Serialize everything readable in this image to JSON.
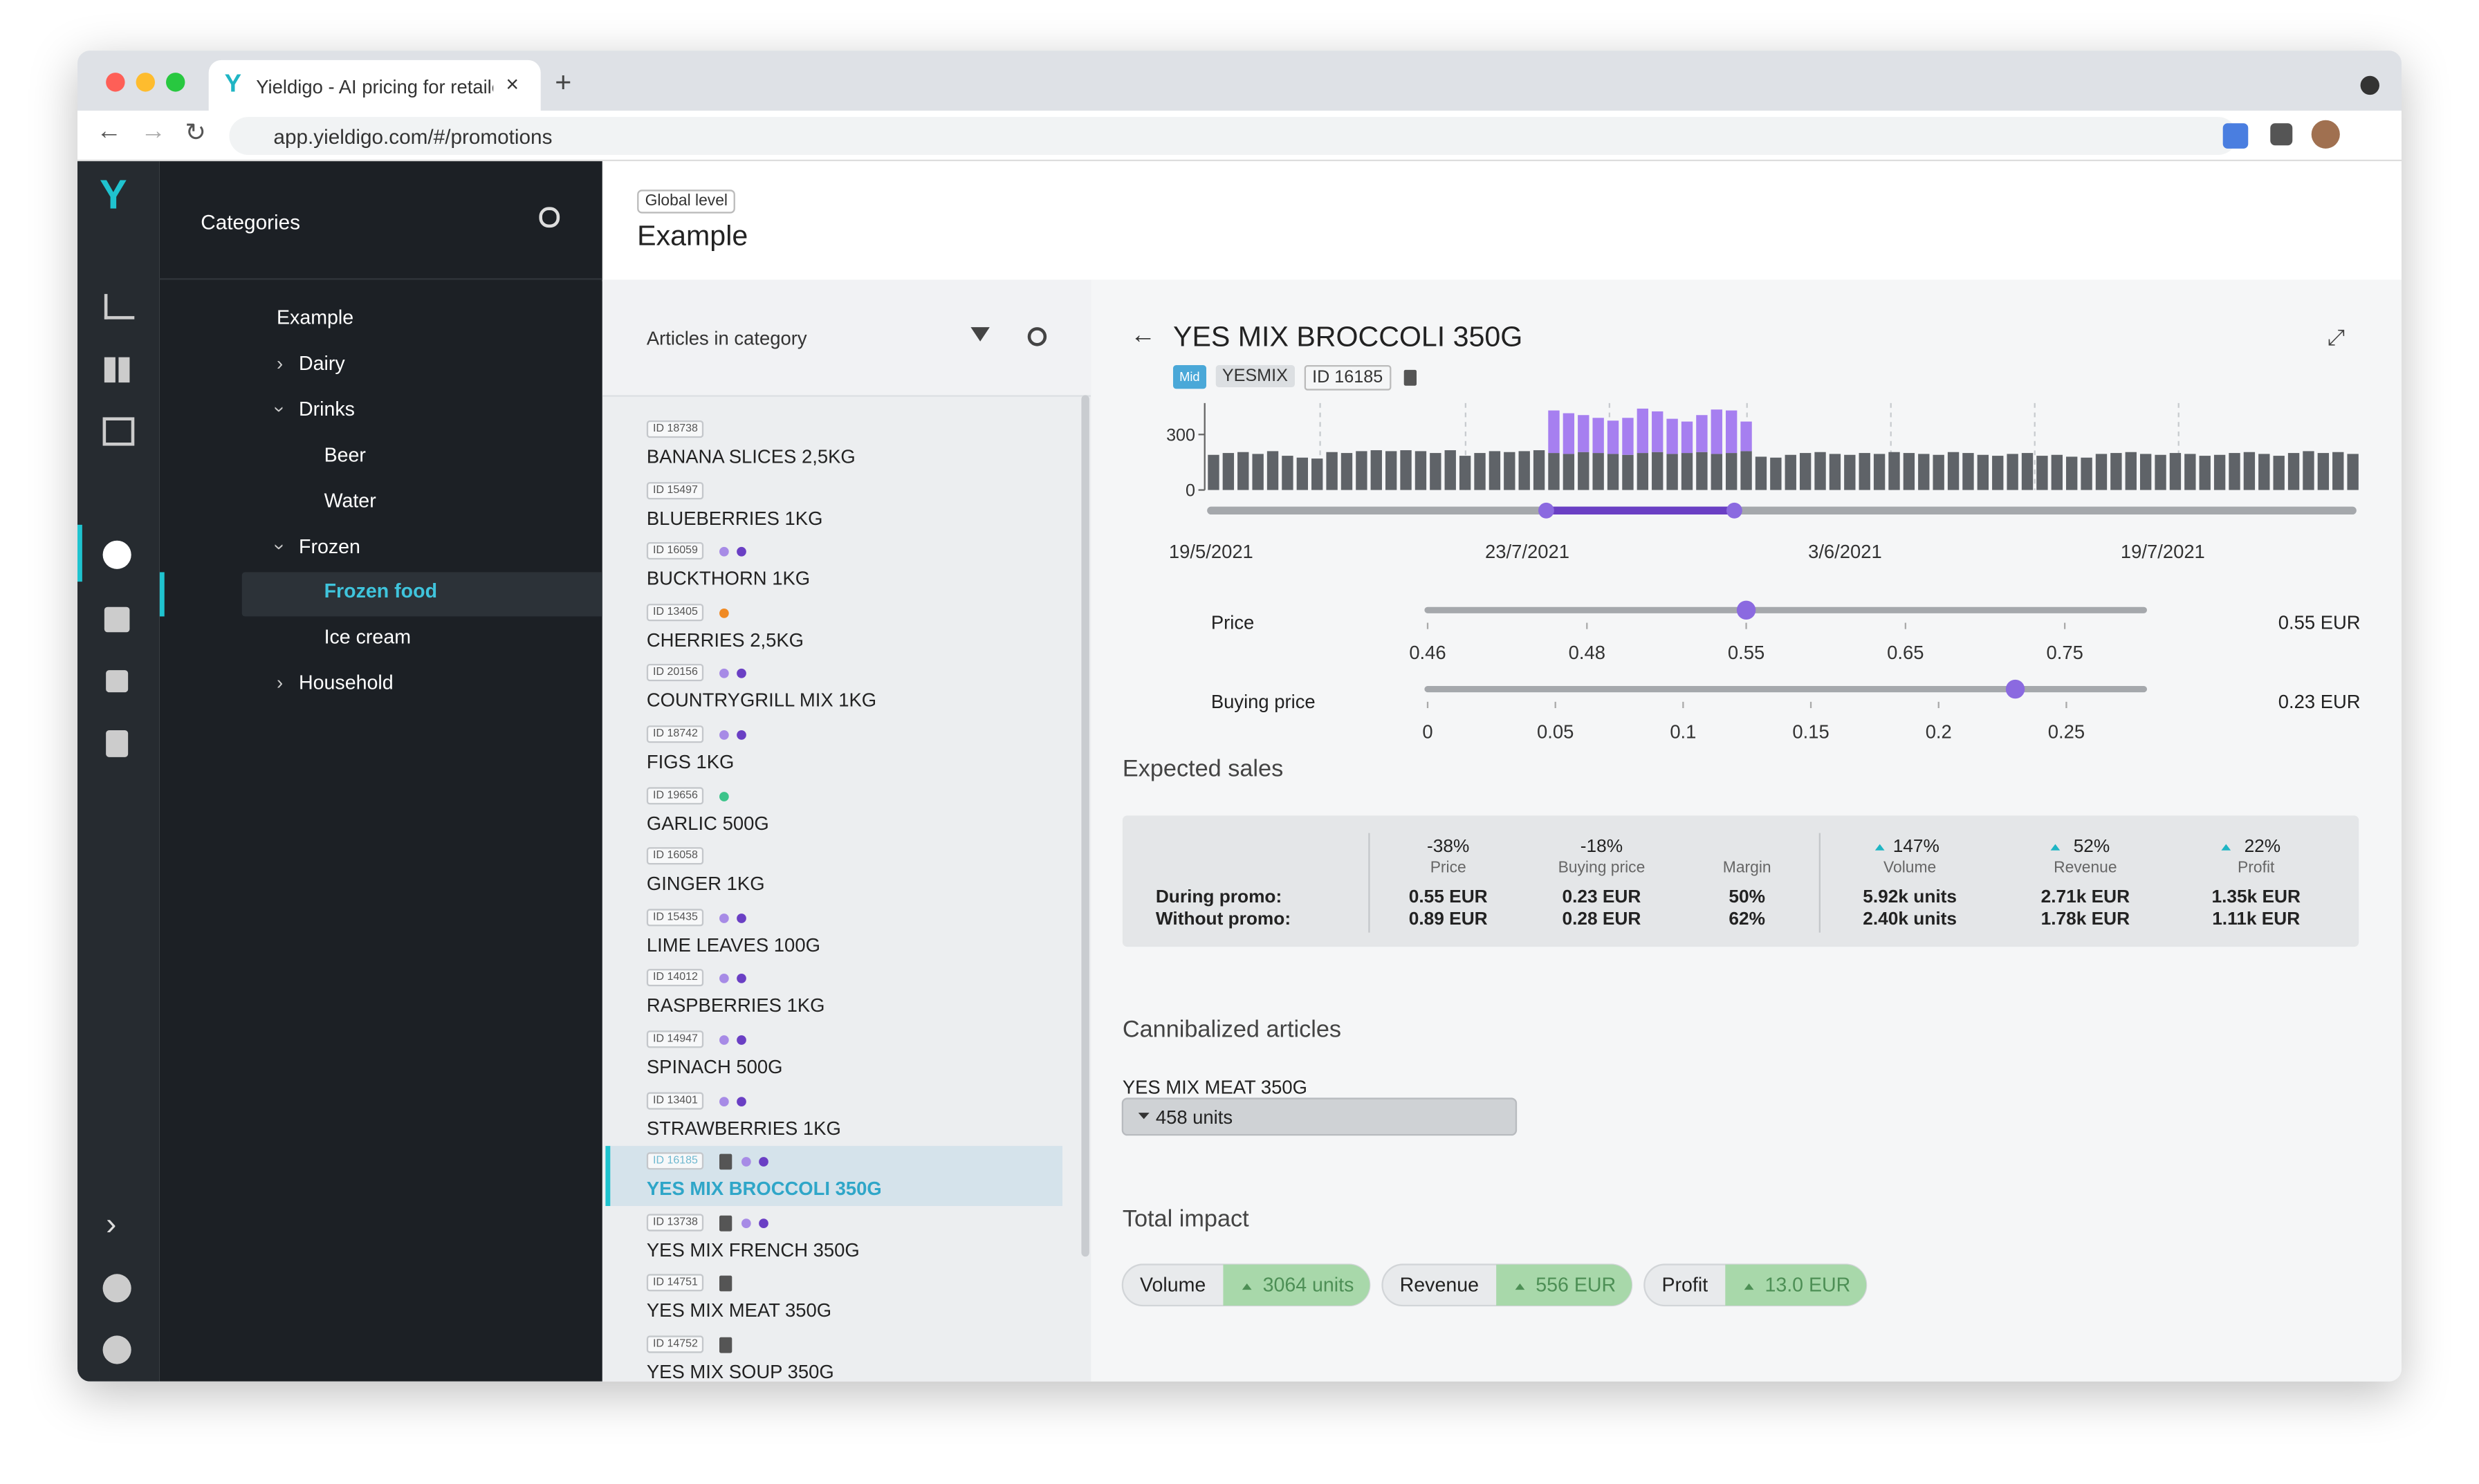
{
  "browser": {
    "tab_title": "Yieldigo - AI pricing for retailer",
    "url": "app.yieldigo.com/#/promotions"
  },
  "sidebar": {
    "title": "Categories",
    "tree": [
      {
        "label": "Example",
        "level": 0,
        "toggle": "none",
        "gear": false
      },
      {
        "label": "Dairy",
        "level": 1,
        "toggle": "collapsed",
        "gear": false
      },
      {
        "label": "Drinks",
        "level": 1,
        "toggle": "expanded",
        "gear": false
      },
      {
        "label": "Beer",
        "level": 2,
        "toggle": "none",
        "gear": true
      },
      {
        "label": "Water",
        "level": 2,
        "toggle": "none",
        "gear": true
      },
      {
        "label": "Frozen",
        "level": 1,
        "toggle": "expanded",
        "gear": false
      },
      {
        "label": "Frozen food",
        "level": 2,
        "toggle": "none",
        "gear": true,
        "selected": true
      },
      {
        "label": "Ice cream",
        "level": 2,
        "toggle": "none",
        "gear": true
      },
      {
        "label": "Household",
        "level": 1,
        "toggle": "collapsed",
        "gear": false
      }
    ]
  },
  "header": {
    "badge": "Global level",
    "title": "Example"
  },
  "articles": {
    "title": "Articles in category",
    "items": [
      {
        "id": "ID 18738",
        "name": "BANANA SLICES 2,5KG",
        "icon": false,
        "dots": []
      },
      {
        "id": "ID 15497",
        "name": "BLUEBERRIES 1KG",
        "icon": false,
        "dots": []
      },
      {
        "id": "ID 16059",
        "name": "BUCKTHORN 1KG",
        "icon": false,
        "dots": [
          "#a78be6",
          "#6a3fc4"
        ]
      },
      {
        "id": "ID 13405",
        "name": "CHERRIES 2,5KG",
        "icon": false,
        "dots": [
          "#f08a24"
        ]
      },
      {
        "id": "ID 20156",
        "name": "COUNTRYGRILL MIX 1KG",
        "icon": false,
        "dots": [
          "#a78be6",
          "#6a3fc4"
        ]
      },
      {
        "id": "ID 18742",
        "name": "FIGS 1KG",
        "icon": false,
        "dots": [
          "#a78be6",
          "#6a3fc4"
        ]
      },
      {
        "id": "ID 19656",
        "name": "GARLIC 500G",
        "icon": false,
        "dots": [
          "#3cc48a"
        ]
      },
      {
        "id": "ID 16058",
        "name": "GINGER 1KG",
        "icon": false,
        "dots": []
      },
      {
        "id": "ID 15435",
        "name": "LIME LEAVES 100G",
        "icon": false,
        "dots": [
          "#a78be6",
          "#6a3fc4"
        ]
      },
      {
        "id": "ID 14012",
        "name": "RASPBERRIES 1KG",
        "icon": false,
        "dots": [
          "#a78be6",
          "#6a3fc4"
        ]
      },
      {
        "id": "ID 14947",
        "name": "SPINACH 500G",
        "icon": false,
        "dots": [
          "#a78be6",
          "#6a3fc4"
        ]
      },
      {
        "id": "ID 13401",
        "name": "STRAWBERRIES 1KG",
        "icon": false,
        "dots": [
          "#a78be6",
          "#6a3fc4"
        ]
      },
      {
        "id": "ID 16185",
        "name": "YES MIX BROCCOLI 350G",
        "icon": true,
        "dots": [
          "#a78be6",
          "#6a3fc4"
        ],
        "selected": true
      },
      {
        "id": "ID 13738",
        "name": "YES MIX FRENCH 350G",
        "icon": true,
        "dots": [
          "#a78be6",
          "#6a3fc4"
        ]
      },
      {
        "id": "ID 14751",
        "name": "YES MIX MEAT 350G",
        "icon": true,
        "dots": []
      },
      {
        "id": "ID 14752",
        "name": "YES MIX SOUP 350G",
        "icon": true,
        "dots": []
      }
    ]
  },
  "detail": {
    "title": "YES MIX BROCCOLI 350G",
    "tags": [
      "Mid",
      "YESMIX",
      "ID 16185"
    ],
    "chart_data": {
      "type": "bar",
      "stacked": true,
      "ylim": [
        0,
        470
      ],
      "yticks": [
        0,
        300
      ],
      "x_labels": [
        "19/5/2021",
        "23/7/2021",
        "3/6/2021",
        "19/7/2021"
      ],
      "series": [
        {
          "color": "#5f6368",
          "values": [
            190,
            200,
            205,
            195,
            210,
            185,
            175,
            170,
            205,
            200,
            210,
            215,
            210,
            215,
            210,
            200,
            215,
            185,
            200,
            210,
            205,
            210,
            215,
            200,
            195,
            205,
            200,
            195,
            190,
            200,
            205,
            195,
            200,
            205,
            195,
            200,
            210,
            180,
            175,
            190,
            200,
            205,
            195,
            190,
            200,
            195,
            205,
            200,
            195,
            190,
            205,
            200,
            190,
            185,
            195,
            200,
            185,
            190,
            180,
            175,
            195,
            200,
            205,
            195,
            190,
            200,
            195,
            185,
            190,
            200,
            205,
            195,
            185,
            200,
            210,
            200,
            205,
            195
          ]
        },
        {
          "color": "#a67ff0",
          "values": [
            null,
            null,
            null,
            null,
            null,
            null,
            null,
            null,
            null,
            null,
            null,
            null,
            null,
            null,
            null,
            null,
            null,
            null,
            null,
            null,
            null,
            null,
            null,
            230,
            220,
            200,
            190,
            180,
            200,
            240,
            220,
            190,
            170,
            200,
            240,
            230,
            160,
            null,
            null,
            null,
            null,
            null,
            null,
            null,
            null,
            null,
            null,
            null,
            null,
            null,
            null,
            null,
            null,
            null,
            null,
            null,
            null,
            null,
            null,
            null,
            null,
            null,
            null,
            null,
            null,
            null,
            null,
            null,
            null,
            null,
            null,
            null,
            null,
            null,
            null,
            null,
            null,
            null
          ]
        }
      ]
    },
    "sliders": [
      {
        "label": "Price",
        "ticks": [
          0.46,
          0.48,
          0.55,
          0.65,
          0.75
        ],
        "value": {
          "value": 0.55,
          "label": "0.55 EUR"
        }
      },
      {
        "label": "Buying price",
        "ticks": [
          0,
          0.05,
          0.1,
          0.15,
          0.2,
          0.25
        ],
        "value": {
          "value": 0.23,
          "label": "0.23 EUR"
        }
      }
    ]
  },
  "expected_sales": {
    "title": "Expected sales",
    "row_labels": [
      "During promo:",
      "Without promo:"
    ],
    "columns": [
      {
        "change": "-38%",
        "arrow": false,
        "label": "Price",
        "promo": "0.55 EUR",
        "without": "0.89 EUR"
      },
      {
        "change": "-18%",
        "arrow": false,
        "label": "Buying price",
        "promo": "0.23 EUR",
        "without": "0.28 EUR"
      },
      {
        "change": null,
        "arrow": false,
        "label": "Margin",
        "promo": "50%",
        "without": "62%"
      },
      {
        "change": "147%",
        "arrow": true,
        "label": "Volume",
        "promo": "5.92k units",
        "without": "2.40k units"
      },
      {
        "change": "52%",
        "arrow": true,
        "label": "Revenue",
        "promo": "2.71k EUR",
        "without": "1.78k EUR"
      },
      {
        "change": "22%",
        "arrow": true,
        "label": "Profit",
        "promo": "1.35k EUR",
        "without": "1.11k EUR"
      }
    ]
  },
  "cannibalized": {
    "title": "Cannibalized articles",
    "items": [
      {
        "name": "YES MIX MEAT 350G",
        "value": "458 units"
      }
    ]
  },
  "total_impact": {
    "title": "Total impact",
    "items": [
      {
        "label": "Volume",
        "value": "3064 units"
      },
      {
        "label": "Revenue",
        "value": "556 EUR"
      },
      {
        "label": "Profit",
        "value": "13.0 EUR"
      }
    ]
  }
}
